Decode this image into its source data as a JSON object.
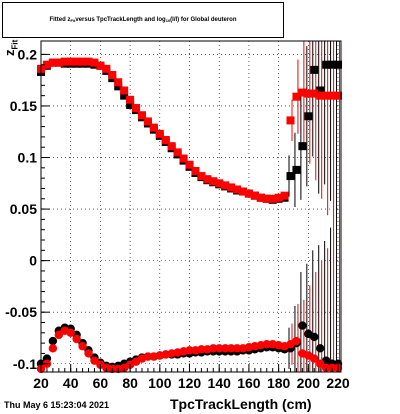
{
  "chart_data": {
    "type": "scatter",
    "title": "Fitted  z_Fit versus TpcTrackLength and log_10(l/l) for Global deuteron",
    "title_parts": {
      "a": "Fitted  z",
      "sub1": "Fit",
      "b": "  versus TpcTrackLength and log",
      "sub2": "10",
      "c": "(I/I) for Global deuteron"
    },
    "xlabel": "TpcTrackLength (cm)",
    "ylabel_main": "z",
    "ylabel_sub": "Fit",
    "datestamp": "Thu May  6 15:23:04 2021",
    "xlim": [
      20,
      222
    ],
    "ylim": [
      -0.108,
      0.213
    ],
    "xticks": [
      20,
      40,
      60,
      80,
      100,
      120,
      140,
      160,
      180,
      200,
      220
    ],
    "xtick_labels": [
      "20",
      "40",
      "60",
      "80",
      "100",
      "120",
      "140",
      "160",
      "180",
      "200",
      "220"
    ],
    "yticks": [
      -0.1,
      -0.05,
      0,
      0.05,
      0.1,
      0.15,
      0.2
    ],
    "ytick_labels": [
      "-0.1",
      "-0.05",
      "0",
      "0.05",
      "0.1",
      "0.15",
      "0.2"
    ],
    "grid": true,
    "series": [
      {
        "marker": "square",
        "color": "#000000",
        "x": [
          20,
          24,
          28,
          32,
          36,
          40,
          44,
          48,
          52,
          56,
          60,
          64,
          68,
          72,
          76,
          80,
          84,
          88,
          92,
          96,
          100,
          104,
          108,
          112,
          116,
          120,
          124,
          128,
          132,
          136,
          140,
          144,
          148,
          152,
          156,
          160,
          164,
          168,
          172,
          176,
          180,
          184,
          188,
          192,
          196,
          200,
          204,
          208,
          212,
          216,
          220
        ],
        "y": [
          0.183,
          0.189,
          0.192,
          0.192,
          0.191,
          0.191,
          0.191,
          0.191,
          0.191,
          0.19,
          0.189,
          0.184,
          0.177,
          0.169,
          0.16,
          0.151,
          0.146,
          0.139,
          0.133,
          0.127,
          0.121,
          0.115,
          0.109,
          0.103,
          0.097,
          0.091,
          0.085,
          0.081,
          0.078,
          0.076,
          0.074,
          0.072,
          0.07,
          0.068,
          0.067,
          0.065,
          0.063,
          0.061,
          0.06,
          0.059,
          0.06,
          0.061,
          0.082,
          0.088,
          0.111,
          0.14,
          0.185,
          0.165,
          0.19,
          0.19,
          0.19
        ]
      },
      {
        "marker": "square",
        "color": "#ff0000",
        "x": [
          20,
          24,
          28,
          32,
          36,
          40,
          44,
          48,
          52,
          56,
          60,
          64,
          68,
          72,
          76,
          80,
          84,
          88,
          92,
          96,
          100,
          104,
          108,
          112,
          116,
          120,
          124,
          128,
          132,
          136,
          140,
          144,
          148,
          152,
          156,
          160,
          164,
          168,
          172,
          176,
          180,
          184,
          188,
          192,
          196,
          200,
          204,
          208,
          212,
          216,
          220
        ],
        "y": [
          0.186,
          0.19,
          0.192,
          0.192,
          0.193,
          0.193,
          0.193,
          0.193,
          0.193,
          0.192,
          0.189,
          0.186,
          0.18,
          0.173,
          0.165,
          0.156,
          0.148,
          0.141,
          0.135,
          0.129,
          0.123,
          0.117,
          0.111,
          0.105,
          0.099,
          0.093,
          0.087,
          0.082,
          0.079,
          0.077,
          0.075,
          0.073,
          0.071,
          0.069,
          0.067,
          0.065,
          0.063,
          0.061,
          0.06,
          0.06,
          0.061,
          0.063,
          0.136,
          0.159,
          0.163,
          0.162,
          0.162,
          0.16,
          0.16,
          0.16,
          0.16
        ]
      },
      {
        "marker": "circle",
        "color": "#000000",
        "x": [
          20,
          24,
          28,
          32,
          36,
          40,
          44,
          48,
          52,
          56,
          60,
          64,
          68,
          72,
          76,
          80,
          84,
          88,
          92,
          96,
          100,
          104,
          108,
          112,
          116,
          120,
          124,
          128,
          132,
          136,
          140,
          144,
          148,
          152,
          156,
          160,
          164,
          168,
          172,
          176,
          180,
          184,
          188,
          192,
          196,
          200,
          204,
          208,
          212,
          216,
          220
        ],
        "y": [
          -0.1,
          -0.095,
          -0.078,
          -0.068,
          -0.065,
          -0.066,
          -0.072,
          -0.08,
          -0.087,
          -0.094,
          -0.099,
          -0.102,
          -0.103,
          -0.102,
          -0.1,
          -0.098,
          -0.096,
          -0.094,
          -0.093,
          -0.093,
          -0.092,
          -0.091,
          -0.091,
          -0.091,
          -0.09,
          -0.09,
          -0.089,
          -0.089,
          -0.088,
          -0.088,
          -0.088,
          -0.088,
          -0.088,
          -0.088,
          -0.087,
          -0.087,
          -0.086,
          -0.085,
          -0.084,
          -0.084,
          -0.085,
          -0.086,
          -0.085,
          -0.08,
          -0.063,
          -0.071,
          -0.074,
          -0.085,
          -0.097,
          -0.1,
          -0.1
        ]
      },
      {
        "marker": "circle",
        "color": "#ff0000",
        "x": [
          20,
          24,
          28,
          32,
          36,
          40,
          44,
          48,
          52,
          56,
          60,
          64,
          68,
          72,
          76,
          80,
          84,
          88,
          92,
          96,
          100,
          104,
          108,
          112,
          116,
          120,
          124,
          128,
          132,
          136,
          140,
          144,
          148,
          152,
          156,
          160,
          164,
          168,
          172,
          176,
          180,
          184,
          188,
          192,
          196,
          200,
          204,
          208,
          212,
          216,
          220
        ],
        "y": [
          -0.105,
          -0.1,
          -0.085,
          -0.072,
          -0.068,
          -0.07,
          -0.076,
          -0.083,
          -0.09,
          -0.097,
          -0.101,
          -0.104,
          -0.105,
          -0.105,
          -0.104,
          -0.101,
          -0.098,
          -0.095,
          -0.093,
          -0.093,
          -0.092,
          -0.091,
          -0.09,
          -0.089,
          -0.088,
          -0.087,
          -0.087,
          -0.086,
          -0.086,
          -0.085,
          -0.085,
          -0.085,
          -0.085,
          -0.085,
          -0.085,
          -0.084,
          -0.083,
          -0.082,
          -0.081,
          -0.081,
          -0.082,
          -0.083,
          -0.081,
          -0.078,
          -0.09,
          -0.092,
          -0.095,
          -0.1,
          -0.104,
          -0.104,
          -0.104
        ]
      }
    ]
  }
}
